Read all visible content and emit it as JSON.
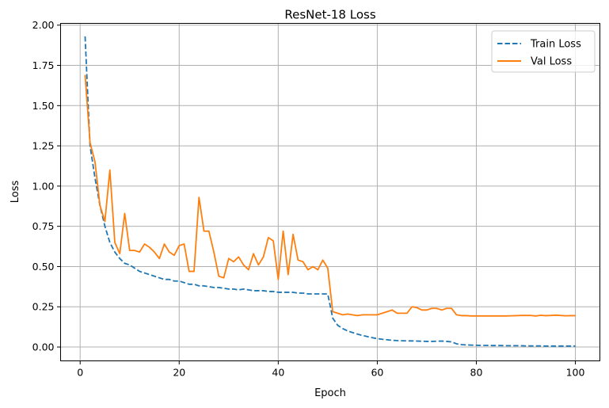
{
  "chart_data": {
    "type": "line",
    "title": "ResNet-18 Loss",
    "xlabel": "Epoch",
    "ylabel": "Loss",
    "xlim": [
      -3.95,
      104.95
    ],
    "ylim": [
      -0.086,
      2.011
    ],
    "xticks": [
      0,
      20,
      40,
      60,
      80,
      100
    ],
    "xtick_labels": [
      "0",
      "20",
      "40",
      "60",
      "80",
      "100"
    ],
    "yticks": [
      0.0,
      0.25,
      0.5,
      0.75,
      1.0,
      1.25,
      1.5,
      1.75,
      2.0
    ],
    "ytick_labels": [
      "0.00",
      "0.25",
      "0.50",
      "0.75",
      "1.00",
      "1.25",
      "1.50",
      "1.75",
      "2.00"
    ],
    "grid": true,
    "legend_position": "upper-right",
    "x": [
      1,
      2,
      3,
      4,
      5,
      6,
      7,
      8,
      9,
      10,
      11,
      12,
      13,
      14,
      15,
      16,
      17,
      18,
      19,
      20,
      21,
      22,
      23,
      24,
      25,
      26,
      27,
      28,
      29,
      30,
      31,
      32,
      33,
      34,
      35,
      36,
      37,
      38,
      39,
      40,
      41,
      42,
      43,
      44,
      45,
      46,
      47,
      48,
      49,
      50,
      51,
      52,
      53,
      54,
      55,
      56,
      57,
      58,
      59,
      60,
      61,
      62,
      63,
      64,
      65,
      66,
      67,
      68,
      69,
      70,
      71,
      72,
      73,
      74,
      75,
      76,
      77,
      78,
      79,
      80,
      81,
      82,
      83,
      84,
      85,
      86,
      87,
      88,
      89,
      90,
      91,
      92,
      93,
      94,
      95,
      96,
      97,
      98,
      99,
      100
    ],
    "series": [
      {
        "name": "Train Loss",
        "color": "#1f77b4",
        "style": "dashed",
        "values": [
          1.93,
          1.25,
          1.05,
          0.88,
          0.75,
          0.65,
          0.59,
          0.55,
          0.52,
          0.51,
          0.49,
          0.47,
          0.46,
          0.45,
          0.44,
          0.43,
          0.42,
          0.42,
          0.41,
          0.41,
          0.4,
          0.39,
          0.39,
          0.38,
          0.38,
          0.375,
          0.37,
          0.37,
          0.365,
          0.36,
          0.36,
          0.355,
          0.36,
          0.355,
          0.35,
          0.35,
          0.35,
          0.345,
          0.345,
          0.34,
          0.34,
          0.34,
          0.34,
          0.335,
          0.335,
          0.33,
          0.33,
          0.33,
          0.33,
          0.33,
          0.18,
          0.135,
          0.115,
          0.1,
          0.09,
          0.08,
          0.072,
          0.065,
          0.058,
          0.052,
          0.048,
          0.045,
          0.042,
          0.04,
          0.039,
          0.038,
          0.038,
          0.037,
          0.036,
          0.035,
          0.035,
          0.036,
          0.037,
          0.035,
          0.032,
          0.02,
          0.015,
          0.013,
          0.012,
          0.011,
          0.01,
          0.01,
          0.009,
          0.009,
          0.009,
          0.008,
          0.008,
          0.008,
          0.008,
          0.007,
          0.007,
          0.007,
          0.007,
          0.006,
          0.006,
          0.006,
          0.006,
          0.006,
          0.006,
          0.006
        ]
      },
      {
        "name": "Val Loss",
        "color": "#ff7f0e",
        "style": "solid",
        "values": [
          1.69,
          1.27,
          1.15,
          0.88,
          0.78,
          1.1,
          0.65,
          0.58,
          0.83,
          0.6,
          0.6,
          0.59,
          0.64,
          0.62,
          0.59,
          0.55,
          0.64,
          0.59,
          0.57,
          0.63,
          0.64,
          0.47,
          0.47,
          0.93,
          0.72,
          0.72,
          0.59,
          0.44,
          0.43,
          0.55,
          0.53,
          0.56,
          0.51,
          0.48,
          0.58,
          0.51,
          0.56,
          0.68,
          0.66,
          0.42,
          0.72,
          0.45,
          0.7,
          0.54,
          0.53,
          0.48,
          0.5,
          0.48,
          0.54,
          0.49,
          0.22,
          0.21,
          0.2,
          0.205,
          0.2,
          0.195,
          0.2,
          0.2,
          0.2,
          0.2,
          0.21,
          0.22,
          0.23,
          0.21,
          0.21,
          0.21,
          0.25,
          0.245,
          0.23,
          0.23,
          0.24,
          0.24,
          0.23,
          0.24,
          0.24,
          0.2,
          0.195,
          0.195,
          0.193,
          0.193,
          0.193,
          0.193,
          0.193,
          0.193,
          0.193,
          0.193,
          0.194,
          0.195,
          0.196,
          0.196,
          0.196,
          0.193,
          0.197,
          0.195,
          0.196,
          0.198,
          0.196,
          0.194,
          0.195,
          0.195
        ]
      }
    ]
  }
}
